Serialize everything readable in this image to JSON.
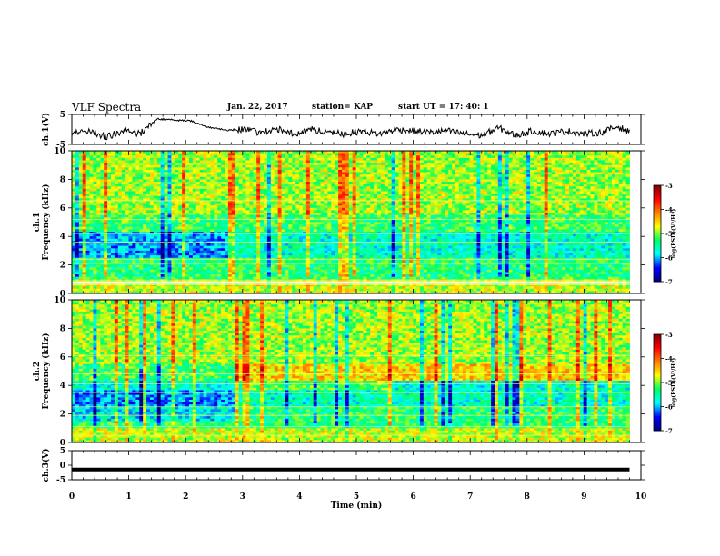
{
  "header": {
    "title": "VLF Spectra",
    "date": "Jan. 22, 2017",
    "station": "station= KAP",
    "start_ut": "start  UT =   17: 40: 1"
  },
  "colors": {
    "axis": "#000000",
    "trace": "#000000",
    "colormap": [
      "#00007f",
      "#0000ff",
      "#00ffff",
      "#00ff66",
      "#ffff00",
      "#ff7f00",
      "#ff0000",
      "#7f0000"
    ]
  },
  "chart_data": [
    {
      "type": "line",
      "id": "ch1-waveform",
      "ylabel": "ch.1(V)",
      "ylim": [
        -5,
        5
      ],
      "yticks": [
        "5",
        "-5"
      ],
      "xlim": [
        0,
        10
      ],
      "series": [
        {
          "x": [
            0,
            0.3,
            0.6,
            0.9,
            1.2,
            1.5,
            1.8,
            2.1,
            2.4,
            2.7,
            3.0,
            3.3,
            3.6,
            3.9,
            4.2,
            4.5,
            4.8,
            5.1,
            5.4,
            5.7,
            6.0,
            6.3,
            6.6,
            6.9,
            7.2,
            7.5,
            7.8,
            8.1,
            8.4,
            8.7,
            9.0,
            9.3,
            9.6,
            9.8
          ],
          "values": [
            -1.5,
            -0.5,
            -2.5,
            -0.5,
            -1.5,
            3.5,
            3.2,
            2.8,
            0.8,
            -0.2,
            0.0,
            -1.0,
            0.2,
            -1.5,
            0.0,
            -1.0,
            -1.5,
            -0.5,
            -1.5,
            0.0,
            -0.5,
            -1.0,
            -0.5,
            -1.5,
            -2.0,
            0.5,
            -2.0,
            -0.5,
            -1.5,
            -0.5,
            -1.5,
            -1.0,
            1.0,
            -1.0
          ]
        }
      ]
    },
    {
      "type": "heatmap",
      "id": "ch1-spectrogram",
      "ylabel": "ch.1\nFrequency (kHz)",
      "ylim": [
        0,
        10
      ],
      "yticks": [
        "0",
        "2",
        "4",
        "6",
        "8",
        "10"
      ],
      "xlim": [
        0,
        10
      ],
      "colorbar": {
        "label": "log(PSD)(V²/Hz)",
        "range": [
          -7,
          -3
        ],
        "ticks": [
          "-3",
          "-4",
          "-5",
          "-6",
          "-7"
        ]
      }
    },
    {
      "type": "heatmap",
      "id": "ch2-spectrogram",
      "ylabel": "ch.2\nFrequency (kHz)",
      "ylim": [
        0,
        10
      ],
      "yticks": [
        "0",
        "2",
        "4",
        "6",
        "8",
        "10"
      ],
      "xlim": [
        0,
        10
      ],
      "colorbar": {
        "label": "log(PSD)(V²/Hz)",
        "range": [
          -7,
          -3
        ],
        "ticks": [
          "-3",
          "-4",
          "-5",
          "-6",
          "-7"
        ]
      }
    },
    {
      "type": "line",
      "id": "ch3-waveform",
      "ylabel": "ch.3(V)",
      "ylim": [
        -5,
        5
      ],
      "yticks": [
        "5",
        "0",
        "-5"
      ],
      "xlabel": "Time (min)",
      "xlim": [
        0,
        10
      ],
      "xticks": [
        "0",
        "1",
        "2",
        "3",
        "4",
        "5",
        "6",
        "7",
        "8",
        "9",
        "10"
      ],
      "series": [
        {
          "x": [
            0,
            9.8
          ],
          "values": [
            -1.5,
            -1.5
          ]
        }
      ]
    }
  ]
}
